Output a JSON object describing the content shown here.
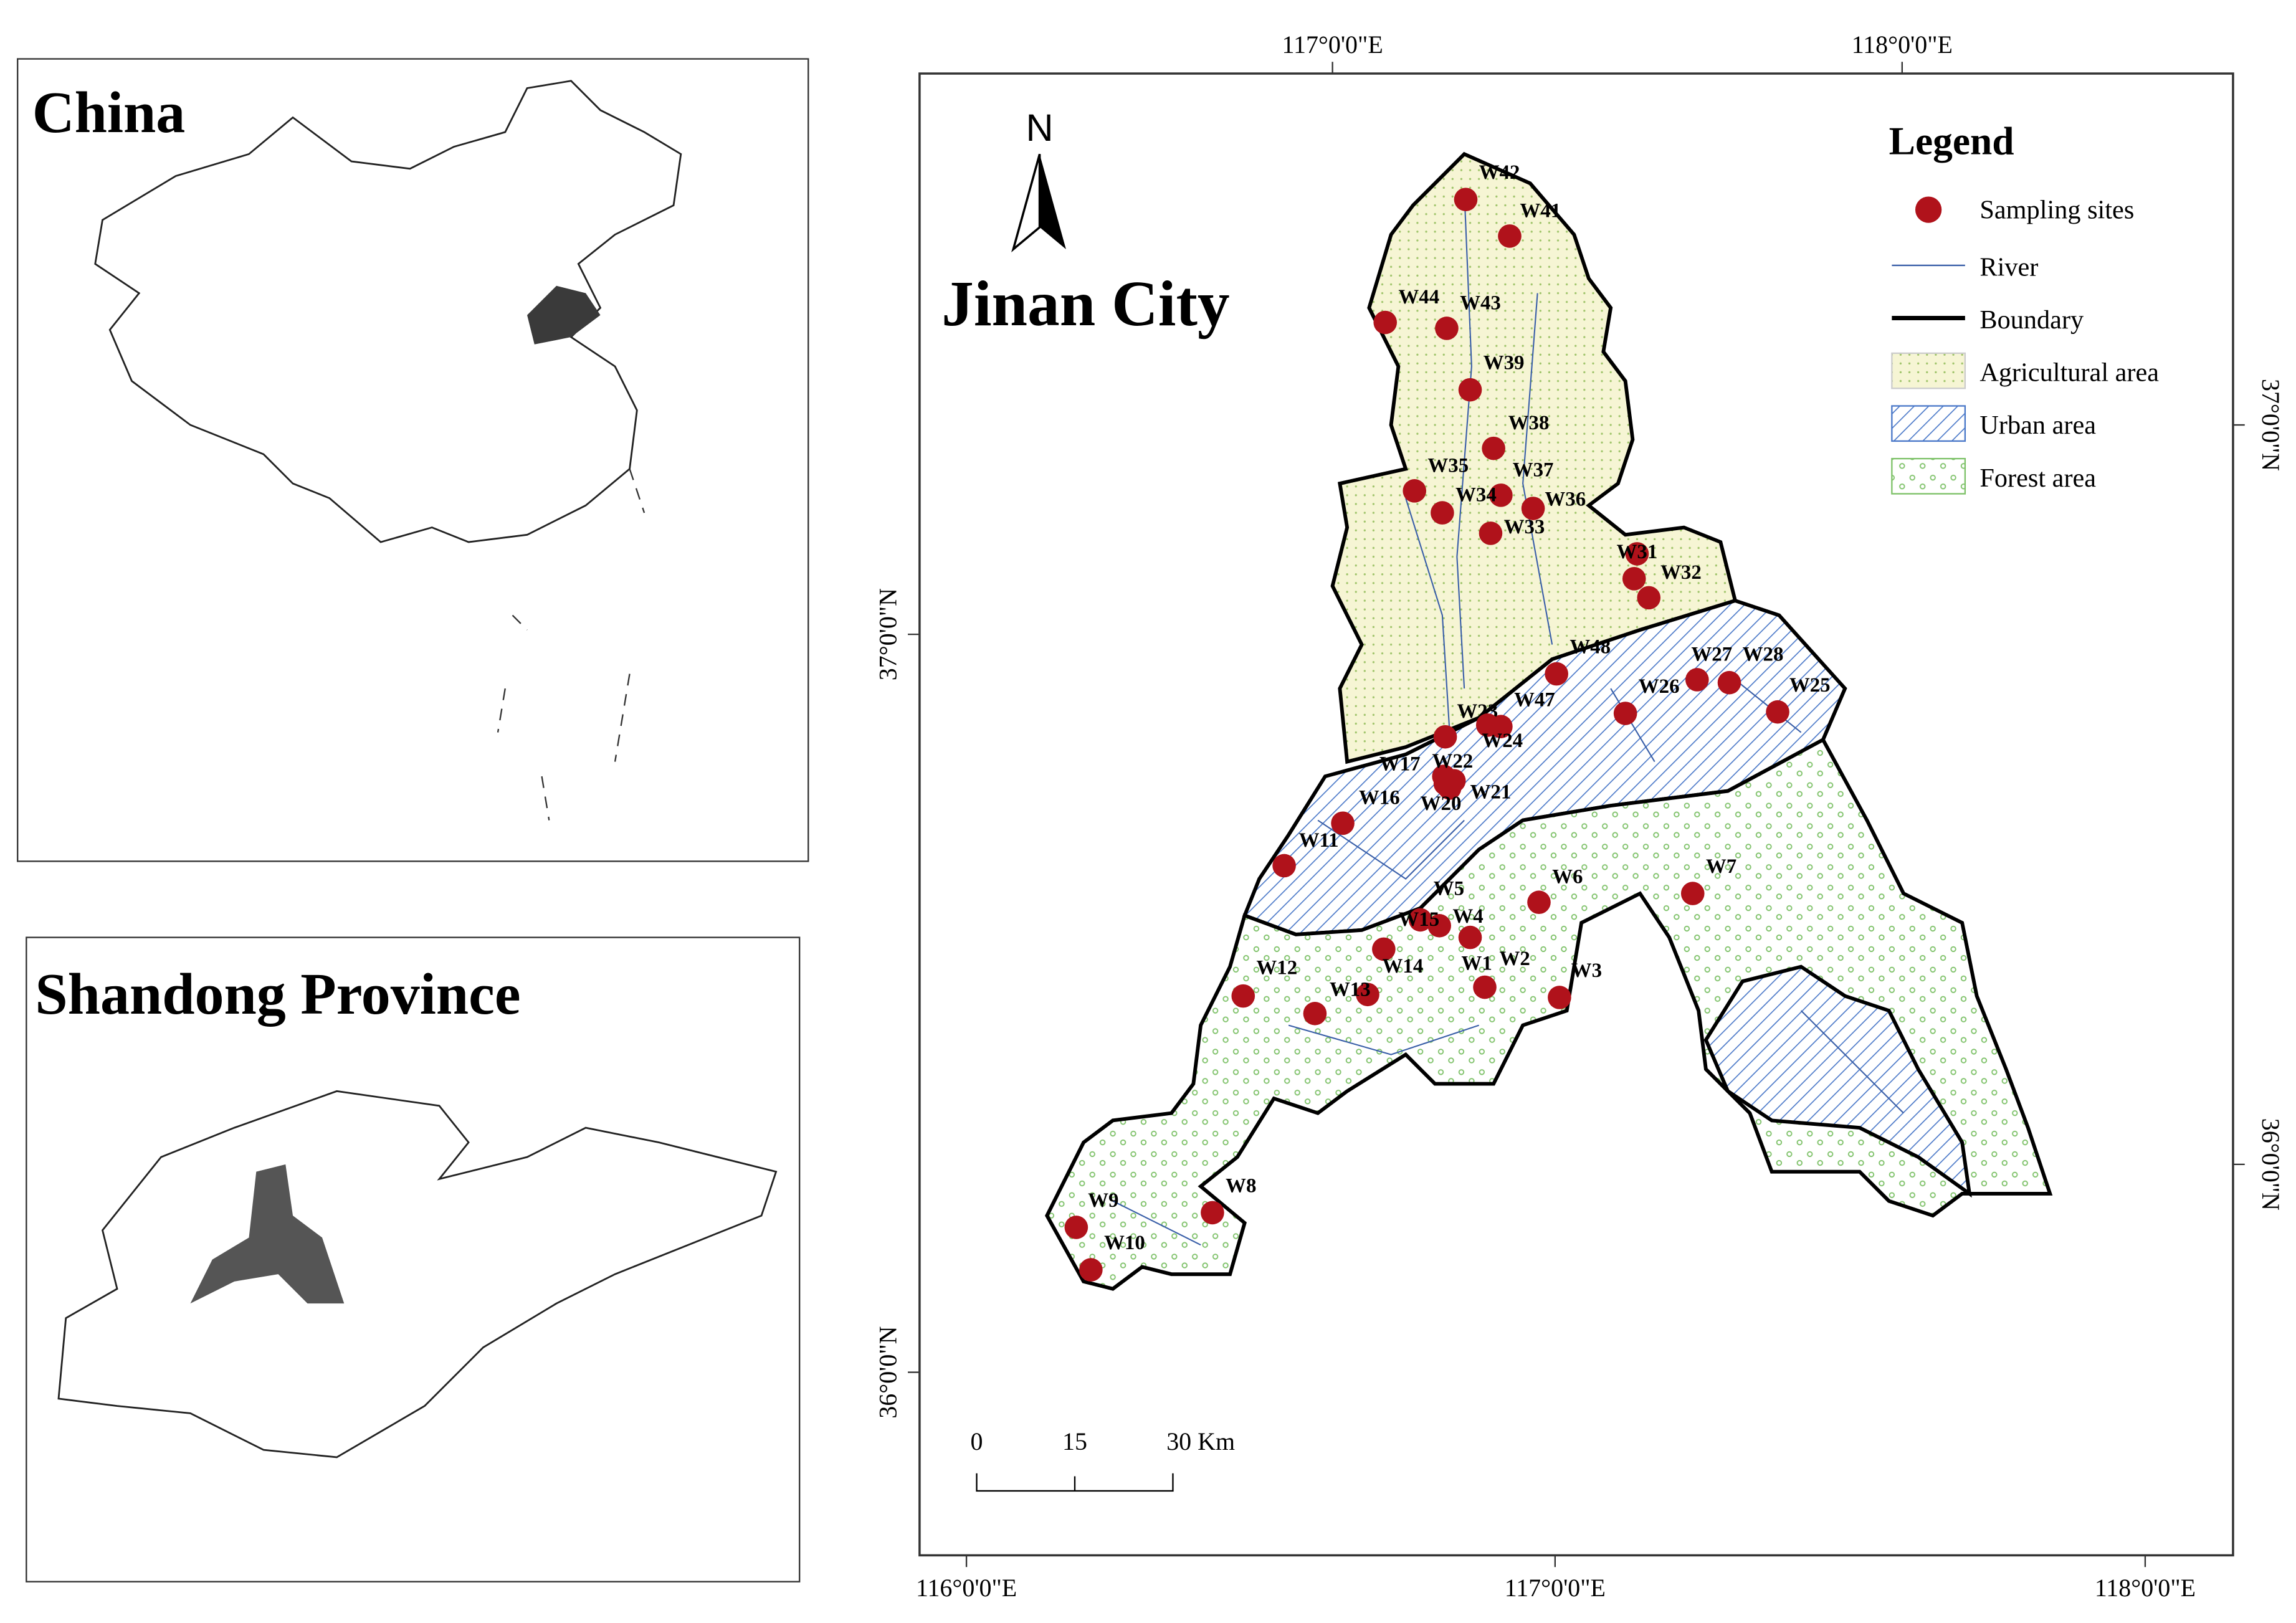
{
  "china_panel": {
    "title": "China"
  },
  "shandong_panel": {
    "title": "Shandong Province"
  },
  "map": {
    "title": "Jinan City",
    "north": "N",
    "top_axis": [
      "117°0'0\"E",
      "118°0'0\"E"
    ],
    "bottom_axis": [
      "116°0'0\"E",
      "117°0'0\"E",
      "118°0'0\"E"
    ],
    "left_axis": [
      "37°0'0\"N",
      "36°0'0\"N"
    ],
    "right_axis": [
      "37°0'0\"N",
      "36°0'0\"N"
    ],
    "scale_bar": [
      "0",
      "15",
      "30 Km"
    ],
    "sites": [
      "W42",
      "W41",
      "W44",
      "W43",
      "W39",
      "W38",
      "W37",
      "W35",
      "W34",
      "W36",
      "W33",
      "W31",
      "W32",
      "W48",
      "W27",
      "W28",
      "W25",
      "W26",
      "W47",
      "W23",
      "W24",
      "W17",
      "W22",
      "W21",
      "W20",
      "W16",
      "W11",
      "W5",
      "W15",
      "W4",
      "W6",
      "W7",
      "W14",
      "W1",
      "W2",
      "W3",
      "W12",
      "W13",
      "W8",
      "W9",
      "W10"
    ],
    "legend": {
      "title": "Legend",
      "items": [
        "Sampling sites",
        "River",
        "Boundary",
        "Agricultural area",
        "Urban area",
        "Forest area"
      ]
    }
  }
}
